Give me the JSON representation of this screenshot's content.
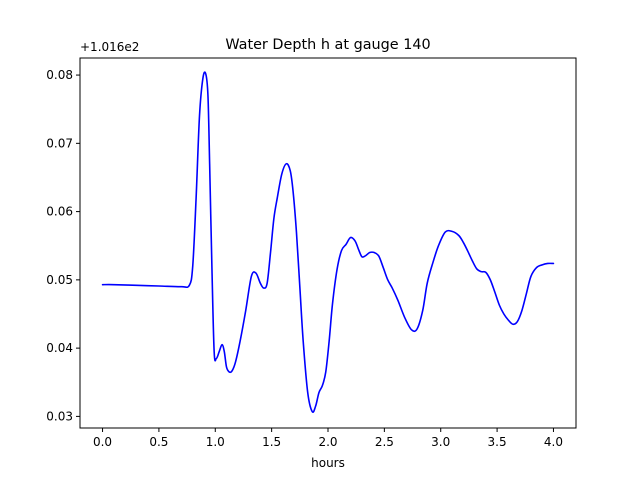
{
  "chart_data": {
    "type": "line",
    "title": "Water Depth h at gauge 140",
    "xlabel": "hours",
    "ylabel": "",
    "offset_text": "+1.016e2",
    "y_offset": 101.6,
    "xlim": [
      -0.2,
      4.2
    ],
    "ylim": [
      0.0283,
      0.0825
    ],
    "x_ticks": [
      0.0,
      0.5,
      1.0,
      1.5,
      2.0,
      2.5,
      3.0,
      3.5,
      4.0
    ],
    "x_tick_labels": [
      "0.0",
      "0.5",
      "1.0",
      "1.5",
      "2.0",
      "2.5",
      "3.0",
      "3.5",
      "4.0"
    ],
    "y_ticks": [
      0.03,
      0.04,
      0.05,
      0.06,
      0.07,
      0.08
    ],
    "y_tick_labels": [
      "0.03",
      "0.04",
      "0.05",
      "0.06",
      "0.07",
      "0.08"
    ],
    "grid": false,
    "series": [
      {
        "color": "#0000ff",
        "x": [
          0.0,
          0.1,
          0.3,
          0.5,
          0.7,
          0.77,
          0.8,
          0.83,
          0.86,
          0.89,
          0.915,
          0.935,
          0.95,
          0.97,
          0.99,
          1.01,
          1.035,
          1.06,
          1.08,
          1.1,
          1.125,
          1.15,
          1.18,
          1.22,
          1.27,
          1.32,
          1.36,
          1.4,
          1.43,
          1.46,
          1.49,
          1.52,
          1.55,
          1.59,
          1.63,
          1.665,
          1.69,
          1.72,
          1.75,
          1.78,
          1.82,
          1.86,
          1.89,
          1.92,
          1.95,
          1.98,
          2.01,
          2.04,
          2.08,
          2.12,
          2.16,
          2.2,
          2.24,
          2.27,
          2.3,
          2.33,
          2.37,
          2.41,
          2.45,
          2.49,
          2.53,
          2.57,
          2.62,
          2.68,
          2.74,
          2.79,
          2.84,
          2.88,
          2.93,
          2.98,
          3.04,
          3.1,
          3.16,
          3.2,
          3.24,
          3.28,
          3.32,
          3.36,
          3.4,
          3.44,
          3.48,
          3.52,
          3.56,
          3.6,
          3.64,
          3.68,
          3.72,
          3.76,
          3.8,
          3.85,
          3.9,
          3.95,
          4.0
        ],
        "y": [
          0.0493,
          0.0493,
          0.0492,
          0.0491,
          0.049,
          0.0492,
          0.052,
          0.062,
          0.074,
          0.0795,
          0.0802,
          0.077,
          0.067,
          0.052,
          0.0395,
          0.0385,
          0.0395,
          0.0405,
          0.0395,
          0.0372,
          0.0365,
          0.0367,
          0.038,
          0.041,
          0.0455,
          0.0505,
          0.051,
          0.0495,
          0.0488,
          0.0495,
          0.054,
          0.059,
          0.062,
          0.0655,
          0.067,
          0.066,
          0.063,
          0.057,
          0.049,
          0.041,
          0.0335,
          0.0307,
          0.0315,
          0.0335,
          0.0345,
          0.0365,
          0.041,
          0.0465,
          0.0515,
          0.0543,
          0.0552,
          0.0562,
          0.0557,
          0.0545,
          0.0534,
          0.0535,
          0.054,
          0.054,
          0.0535,
          0.0518,
          0.05,
          0.0488,
          0.047,
          0.0445,
          0.0427,
          0.0428,
          0.0455,
          0.0495,
          0.0525,
          0.055,
          0.057,
          0.0571,
          0.0565,
          0.0555,
          0.0542,
          0.0528,
          0.0516,
          0.0512,
          0.0511,
          0.05,
          0.0482,
          0.0463,
          0.045,
          0.0441,
          0.0435,
          0.0439,
          0.0455,
          0.048,
          0.0505,
          0.0518,
          0.0522,
          0.0524,
          0.0524
        ]
      }
    ]
  }
}
